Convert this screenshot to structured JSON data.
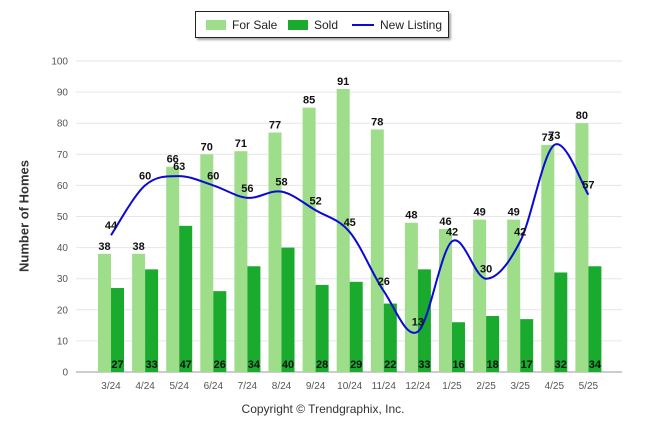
{
  "chart_data": {
    "type": "bar",
    "categories": [
      "3/24",
      "4/24",
      "5/24",
      "6/24",
      "7/24",
      "8/24",
      "9/24",
      "10/24",
      "11/24",
      "12/24",
      "1/25",
      "2/25",
      "3/25",
      "4/25",
      "5/25"
    ],
    "series": [
      {
        "name": "For Sale",
        "type": "bar",
        "color": "#9edd8a",
        "values": [
          38,
          38,
          66,
          70,
          71,
          77,
          85,
          91,
          78,
          48,
          46,
          49,
          49,
          73,
          80
        ]
      },
      {
        "name": "Sold",
        "type": "bar",
        "color": "#1aaa2e",
        "values": [
          27,
          33,
          47,
          26,
          34,
          40,
          28,
          29,
          22,
          33,
          16,
          18,
          17,
          32,
          34
        ]
      },
      {
        "name": "New Listing",
        "type": "line",
        "color": "#0a0ad4",
        "values": [
          44,
          60,
          63,
          60,
          56,
          58,
          52,
          45,
          26,
          13,
          42,
          30,
          42,
          73,
          57
        ]
      }
    ],
    "xlabel": "",
    "ylabel": "Number of Homes",
    "ylim": [
      0,
      100
    ],
    "yticks": [
      0,
      10,
      20,
      30,
      40,
      50,
      60,
      70,
      80,
      90,
      100
    ],
    "grid": true,
    "legend_position": "top-center"
  },
  "footer": {
    "copyright": "Copyright © Trendgraphix, Inc."
  }
}
